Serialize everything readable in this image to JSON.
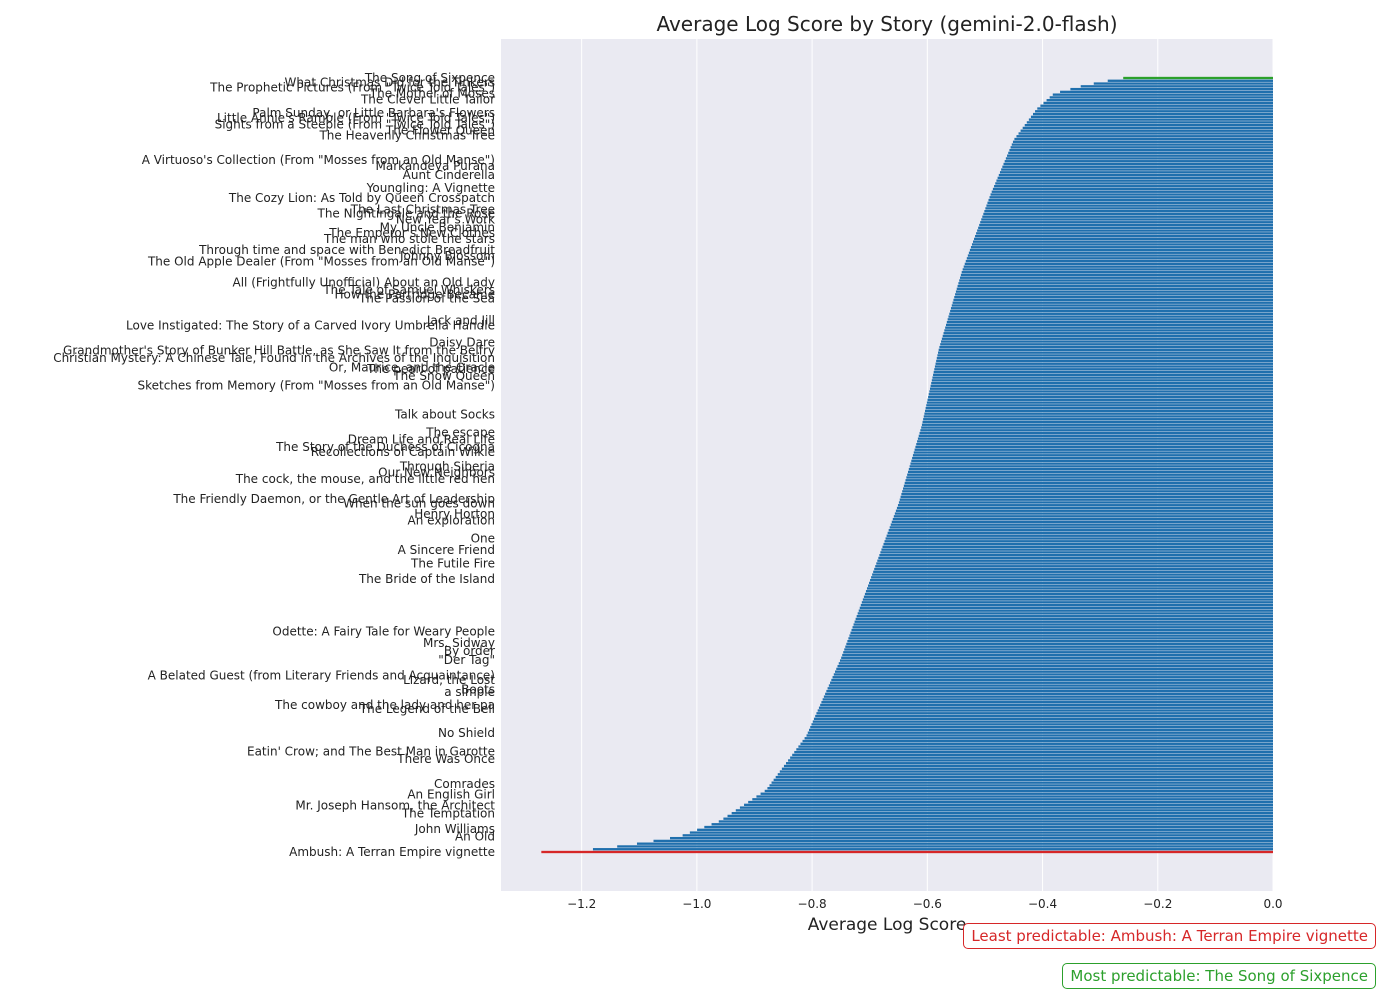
{
  "chart_data": {
    "type": "bar",
    "orientation": "horizontal",
    "title": "Average Log Score by Story (gemini-2.0-flash)",
    "xlabel": "Average Log Score",
    "ylabel": "",
    "xlim": [
      -1.34,
      0.0
    ],
    "xticks": [
      -1.2,
      -1.0,
      -0.8,
      -0.6,
      -0.4,
      -0.2,
      0.0
    ],
    "xtick_labels": [
      "−1.2",
      "−1.0",
      "−0.8",
      "−0.6",
      "−0.4",
      "−0.2",
      "0.0"
    ],
    "grid": true,
    "colors": {
      "bar": "#1f6fad",
      "most": "#2ca02c",
      "least": "#d62728",
      "axes_bg": "#eaeaf2",
      "grid": "#ffffff"
    },
    "bar_count": 280,
    "profile_fraction": [
      0,
      0.004,
      0.01,
      0.02,
      0.04,
      0.08,
      0.15,
      0.25,
      0.35,
      0.45,
      0.55,
      0.65,
      0.75,
      0.85,
      0.92,
      0.96,
      0.98,
      0.99,
      0.996,
      1
    ],
    "profile_value": [
      -0.26,
      -0.29,
      -0.33,
      -0.38,
      -0.41,
      -0.45,
      -0.49,
      -0.54,
      -0.58,
      -0.61,
      -0.65,
      -0.7,
      -0.75,
      -0.81,
      -0.88,
      -0.96,
      -1.03,
      -1.11,
      -1.17,
      -1.27
    ],
    "labeled_categories": [
      {
        "label": "The Song of Sixpence",
        "fraction": 0.0
      },
      {
        "label": "What Christmas Did for the Tinkers",
        "fraction": 0.006
      },
      {
        "label": "The Prophetic Pictures (From \"Twice Told Tales\")",
        "fraction": 0.012
      },
      {
        "label": "The Mother of Moses",
        "fraction": 0.02
      },
      {
        "label": "The Clever Little Tailor",
        "fraction": 0.028
      },
      {
        "label": "Palm Sunday, or Little Barbara's Flowers",
        "fraction": 0.045
      },
      {
        "label": "Little Annie's Ramble (From \"Twice Told Tales\")",
        "fraction": 0.052
      },
      {
        "label": "Sights from a Steeple (From \"Twice Told Tales\")",
        "fraction": 0.06
      },
      {
        "label": "The Flower Queen",
        "fraction": 0.068
      },
      {
        "label": "The Heavenly Christmas Tree",
        "fraction": 0.074
      },
      {
        "label": "A Virtuoso's Collection (From \"Mosses from an Old Manse\")",
        "fraction": 0.106
      },
      {
        "label": "Markandeya Purana",
        "fraction": 0.114
      },
      {
        "label": "Aunt Cinderella",
        "fraction": 0.125
      },
      {
        "label": "Youngling: A Vignette",
        "fraction": 0.142
      },
      {
        "label": "The Cozy Lion: As Told by Queen Crosspatch",
        "fraction": 0.155
      },
      {
        "label": "The Last Christmas Tree",
        "fraction": 0.17
      },
      {
        "label": "The Nightingale and the Rose",
        "fraction": 0.175
      },
      {
        "label": "New Year's Work",
        "fraction": 0.183
      },
      {
        "label": "My Uncle Benjamin",
        "fraction": 0.193
      },
      {
        "label": "The Emperor's New Clothes",
        "fraction": 0.2
      },
      {
        "label": "The man who stole the stars",
        "fraction": 0.208
      },
      {
        "label": "Through time and space with Benedict Breadfruit",
        "fraction": 0.222
      },
      {
        "label": "Johnny Blossom",
        "fraction": 0.23
      },
      {
        "label": "The Old Apple Dealer (From \"Mosses from an Old Manse\")",
        "fraction": 0.237
      },
      {
        "label": "All (Frightfully Unofficial) About an Old Lady",
        "fraction": 0.264
      },
      {
        "label": "The Tale of Samuel Whiskers",
        "fraction": 0.274
      },
      {
        "label": "How the Partridge Became",
        "fraction": 0.28
      },
      {
        "label": "The Passion of the Sea",
        "fraction": 0.285
      },
      {
        "label": "Love Instigated: The Story of a Carved Ivory Umbrella Handle",
        "fraction": 0.32
      },
      {
        "label": "Jack and Jill",
        "fraction": 0.313
      },
      {
        "label": "Daisy Dare",
        "fraction": 0.342
      },
      {
        "label": "Grandmother's Story of Bunker Hill Battle, as She Saw It from the Belfry",
        "fraction": 0.352
      },
      {
        "label": "Christian Mystery: A Chinese Tale, Found in the Archives of the Inquisition",
        "fraction": 0.362
      },
      {
        "label": "The pearl of patience",
        "fraction": 0.376
      },
      {
        "label": "Or, Maurice, and the Oracle",
        "fraction": 0.374
      },
      {
        "label": "The Snow Queen",
        "fraction": 0.385
      },
      {
        "label": "Sketches from Memory (From \"Mosses from an Old Manse\")",
        "fraction": 0.397
      },
      {
        "label": "Talk about Socks",
        "fraction": 0.435
      },
      {
        "label": "The escape",
        "fraction": 0.458
      },
      {
        "label": "Dream Life and Real Life",
        "fraction": 0.467
      },
      {
        "label": "The Story of the Duchess of Cicogna",
        "fraction": 0.477
      },
      {
        "label": "Recollections of Captain Wilkie",
        "fraction": 0.483
      },
      {
        "label": "Through Siberia",
        "fraction": 0.502
      },
      {
        "label": "Our New Neighbors",
        "fraction": 0.51
      },
      {
        "label": "The cock, the mouse, and the little red hen",
        "fraction": 0.518
      },
      {
        "label": "The Friendly Daemon, or the Gentle Art of Leadership",
        "fraction": 0.544
      },
      {
        "label": "When the sun goes down",
        "fraction": 0.55
      },
      {
        "label": "Henry Horton",
        "fraction": 0.563
      },
      {
        "label": "An exploration",
        "fraction": 0.572
      },
      {
        "label": "One",
        "fraction": 0.595
      },
      {
        "label": "A Sincere Friend",
        "fraction": 0.61
      },
      {
        "label": "The Futile Fire",
        "fraction": 0.627
      },
      {
        "label": "The Bride of the Island",
        "fraction": 0.647
      },
      {
        "label": "Odette: A Fairy Tale for Weary People",
        "fraction": 0.715
      },
      {
        "label": "Mrs. Sidway",
        "fraction": 0.73
      },
      {
        "label": "By order",
        "fraction": 0.74
      },
      {
        "label": "\"Der Tag\"",
        "fraction": 0.752
      },
      {
        "label": "A Belated Guest (from Literary Friends and Acquaintance)",
        "fraction": 0.772
      },
      {
        "label": "Lizard, the Lost",
        "fraction": 0.778
      },
      {
        "label": "Boots",
        "fraction": 0.79
      },
      {
        "label": "a simple",
        "fraction": 0.793
      },
      {
        "label": "The cowboy and the lady and her pa",
        "fraction": 0.81
      },
      {
        "label": "The Legend of the Bell",
        "fraction": 0.815
      },
      {
        "label": "No Shield",
        "fraction": 0.846
      },
      {
        "label": "Eatin' Crow; and The Best Man in Garotte",
        "fraction": 0.87
      },
      {
        "label": "There Was Once",
        "fraction": 0.88
      },
      {
        "label": "Comrades",
        "fraction": 0.912
      },
      {
        "label": "An English Girl",
        "fraction": 0.926
      },
      {
        "label": "Mr. Joseph Hansom, the Architect",
        "fraction": 0.94
      },
      {
        "label": "The Temptation",
        "fraction": 0.95
      },
      {
        "label": "John Williams",
        "fraction": 0.97
      },
      {
        "label": "An Old",
        "fraction": 0.98
      },
      {
        "label": "Ambush: A Terran Empire vignette",
        "fraction": 1.0
      }
    ],
    "annotations": {
      "least": "Least predictable: Ambush: A Terran Empire vignette",
      "most": "Most predictable: The Song of Sixpence"
    }
  }
}
